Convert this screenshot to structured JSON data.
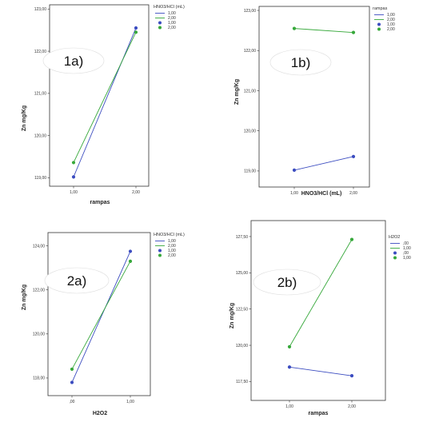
{
  "chart_data": [
    {
      "id": "1a",
      "type": "line",
      "panel_label": "1a)",
      "xlabel": "rampas",
      "ylabel": "Zn mg/Kg",
      "categories": [
        "1,00",
        "2,00"
      ],
      "y_ticks": [
        "119,00",
        "120,00",
        "121,00",
        "122,00",
        "123,00"
      ],
      "ylim": [
        118.8,
        123.1
      ],
      "legend_title": "HNO3/HCl (mL)",
      "legend_labels": [
        "1,00",
        "2,00",
        "1,00",
        "2,00"
      ],
      "series": [
        {
          "name": "1,00",
          "color": "#3b4cc0",
          "values": [
            119.02,
            122.55
          ]
        },
        {
          "name": "2,00",
          "color": "#36a83a",
          "values": [
            119.36,
            122.45
          ]
        }
      ]
    },
    {
      "id": "1b",
      "type": "line",
      "panel_label": "1b)",
      "xlabel": "HNO3/HCl (mL)",
      "ylabel": "Zn mg/Kg",
      "categories": [
        "1,00",
        "2,00"
      ],
      "y_ticks": [
        "119,00",
        "120,00",
        "121,00",
        "122,00",
        "123,00"
      ],
      "ylim": [
        118.6,
        123.1
      ],
      "legend_title": "rampas",
      "legend_labels": [
        "1,00",
        "2,00",
        "1,00",
        "2,00"
      ],
      "series": [
        {
          "name": "1,00",
          "color": "#3b4cc0",
          "values": [
            119.02,
            119.36
          ]
        },
        {
          "name": "2,00",
          "color": "#36a83a",
          "values": [
            122.55,
            122.45
          ]
        }
      ]
    },
    {
      "id": "2a",
      "type": "line",
      "panel_label": "2a)",
      "xlabel": "H2O2",
      "ylabel": "Zn mg/Kg",
      "categories": [
        ",00",
        "1,00"
      ],
      "y_ticks": [
        "118,00",
        "120,00",
        "122,00",
        "124,00"
      ],
      "ylim": [
        117.2,
        124.6
      ],
      "legend_title": "HNO3/HCl (mL)",
      "legend_labels": [
        "1,00",
        "2,00",
        "1,00",
        "2,00"
      ],
      "series": [
        {
          "name": "1,00",
          "color": "#3b4cc0",
          "values": [
            117.8,
            123.75
          ]
        },
        {
          "name": "2,00",
          "color": "#36a83a",
          "values": [
            118.4,
            123.3
          ]
        }
      ]
    },
    {
      "id": "2b",
      "type": "line",
      "panel_label": "2b)",
      "xlabel": "rampas",
      "ylabel": "Zn mg/Kg",
      "categories": [
        "1,00",
        "2,00"
      ],
      "y_ticks": [
        "117,50",
        "120,00",
        "122,50",
        "125,00",
        "127,50"
      ],
      "ylim": [
        116.2,
        128.6
      ],
      "legend_title": "H2O2",
      "legend_labels": [
        ",00",
        "1,00",
        ",00",
        "1,00"
      ],
      "series": [
        {
          "name": ",00",
          "color": "#3b4cc0",
          "values": [
            118.5,
            117.9
          ]
        },
        {
          "name": "1,00",
          "color": "#36a83a",
          "values": [
            119.9,
            127.3
          ]
        }
      ]
    }
  ]
}
